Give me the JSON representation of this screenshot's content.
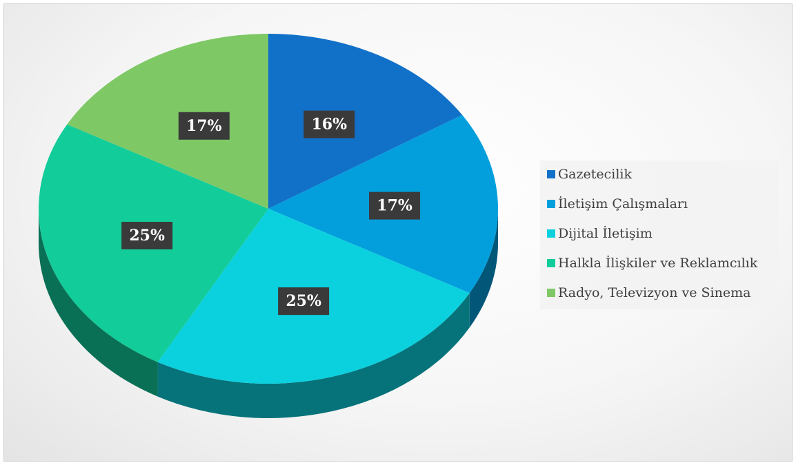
{
  "chart_data": {
    "type": "pie",
    "categories": [
      "Gazetecilik",
      "İletişim Çalışmaları",
      "Dijital İletişim",
      "Halkla İlişkiler ve Reklamcılık",
      "Radyo, Televizyon ve Sinema"
    ],
    "values": [
      16,
      17,
      25,
      25,
      17
    ],
    "value_labels": [
      "16%",
      "17%",
      "25%",
      "25%",
      "17%"
    ],
    "colors": [
      "#1170c8",
      "#039fdc",
      "#0bd0de",
      "#12cc9a",
      "#7ec865"
    ],
    "legend": "right"
  }
}
